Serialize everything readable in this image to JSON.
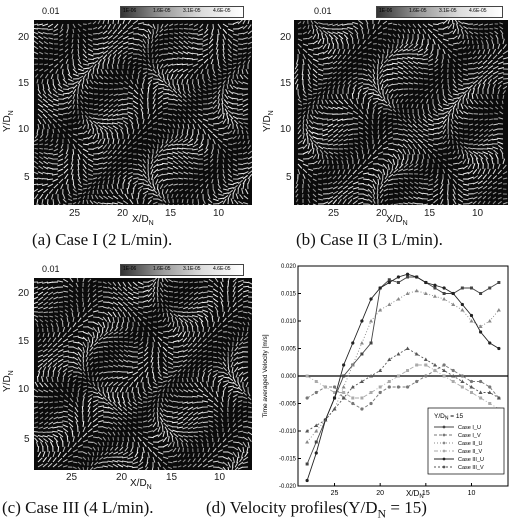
{
  "panels": {
    "a": {
      "caption": "(a) Case I (2 L/min).",
      "scale": "0.01",
      "yticks": [
        "20",
        "15",
        "10",
        "5"
      ],
      "xticks": [
        "25",
        "20",
        "15",
        "10"
      ],
      "colorbar": [
        "1E-06",
        "1.6E-05",
        "3.1E-05",
        "4.6E-05"
      ]
    },
    "b": {
      "caption": "(b) Case II (3 L/min).",
      "scale": "0.01",
      "yticks": [
        "20",
        "15",
        "10",
        "5"
      ],
      "xticks": [
        "25",
        "20",
        "15",
        "10"
      ],
      "colorbar": [
        "1E-06",
        "1.6E-05",
        "3.1E-05",
        "4.6E-05"
      ]
    },
    "c": {
      "caption": "(c) Case III (4 L/min).",
      "scale": "0.01",
      "yticks": [
        "20",
        "15",
        "10",
        "5"
      ],
      "xticks": [
        "25",
        "20",
        "15",
        "10"
      ],
      "colorbar": [
        "1E-06",
        "1.6E-05",
        "3.1E-05",
        "4.6E-05"
      ]
    },
    "d": {
      "caption": "(d) Velocity profiles(Y/D",
      "caption_sub": "N",
      "caption_tail": " = 15)"
    }
  },
  "axis": {
    "ylabel": "Y/D",
    "xlabel": "X/D",
    "sub": "N"
  },
  "chart_data": {
    "type": "line",
    "ylabel": "Time averaged Velocity [m/s]",
    "xlabel": "X/D",
    "xlabel_sub": "N",
    "xlim": [
      29,
      6
    ],
    "ylim": [
      -0.02,
      0.02
    ],
    "yticks": [
      "0.020",
      "0.015",
      "0.010",
      "0.005",
      "0.000",
      "-0.005",
      "-0.010",
      "-0.015",
      "-0.020"
    ],
    "xticks": [
      "25",
      "20",
      "15",
      "10"
    ],
    "annotation": "Y/D",
    "annotation_sub": "N",
    "annotation_tail": " = 15",
    "x": [
      28,
      27,
      26,
      25,
      24,
      23,
      22,
      21,
      20,
      19,
      18,
      17,
      16,
      15,
      14,
      13,
      12,
      11,
      10,
      9,
      8,
      7
    ],
    "series": [
      {
        "name": "Case I_U",
        "color": "#444444",
        "values": [
          -0.016,
          -0.012,
          -0.008,
          -0.004,
          0.0,
          0.002,
          0.004,
          0.006,
          0.016,
          0.0175,
          0.017,
          0.018,
          0.018,
          0.017,
          0.016,
          0.015,
          0.015,
          0.016,
          0.016,
          0.015,
          0.016,
          0.017
        ]
      },
      {
        "name": "Case I_V",
        "color": "#777777",
        "values": [
          -0.004,
          -0.003,
          -0.002,
          -0.002,
          -0.004,
          -0.005,
          -0.006,
          -0.005,
          -0.003,
          -0.002,
          -0.002,
          -0.002,
          -0.001,
          0.0,
          0.001,
          0.002,
          0.001,
          0.0,
          -0.001,
          -0.001,
          -0.002,
          -0.004
        ]
      },
      {
        "name": "Case II_U",
        "color": "#888888",
        "values": [
          -0.012,
          -0.01,
          -0.008,
          -0.006,
          -0.002,
          0.002,
          0.006,
          0.01,
          0.012,
          0.013,
          0.014,
          0.015,
          0.0155,
          0.015,
          0.0145,
          0.014,
          0.013,
          0.012,
          0.01,
          0.009,
          0.01,
          0.012
        ]
      },
      {
        "name": "Case II_V",
        "color": "#aaaaaa",
        "values": [
          0.0,
          -0.001,
          -0.002,
          -0.003,
          -0.003,
          -0.004,
          -0.004,
          -0.003,
          -0.002,
          -0.001,
          0.0,
          0.001,
          0.002,
          0.002,
          0.001,
          0.0,
          -0.001,
          -0.002,
          -0.003,
          -0.004,
          -0.005,
          -0.006
        ]
      },
      {
        "name": "Case III_U",
        "color": "#222222",
        "values": [
          -0.019,
          -0.014,
          -0.008,
          -0.004,
          0.002,
          0.006,
          0.01,
          0.014,
          0.016,
          0.017,
          0.018,
          0.0185,
          0.018,
          0.017,
          0.0165,
          0.016,
          0.015,
          0.013,
          0.011,
          0.008,
          0.006,
          0.005
        ]
      },
      {
        "name": "Case III_V",
        "color": "#555555",
        "values": [
          -0.01,
          -0.009,
          -0.008,
          -0.006,
          -0.004,
          -0.002,
          -0.001,
          0.0,
          0.001,
          0.003,
          0.004,
          0.005,
          0.004,
          0.003,
          0.002,
          0.001,
          0.0,
          -0.001,
          -0.002,
          -0.003,
          -0.003,
          -0.004
        ]
      }
    ],
    "legend": "bottom-right"
  }
}
